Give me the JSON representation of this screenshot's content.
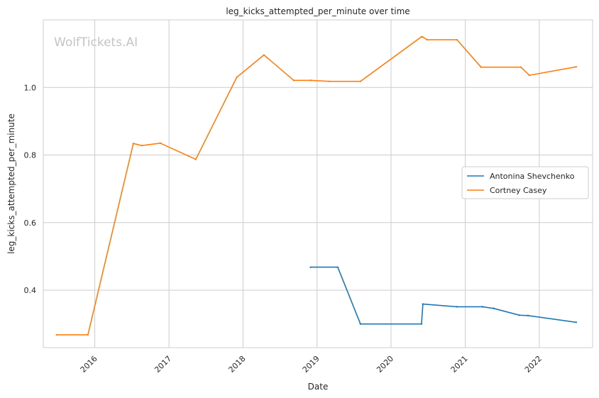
{
  "chart_data": {
    "type": "line",
    "title": "leg_kicks_attempted_per_minute over time",
    "xlabel": "Date",
    "ylabel": "leg_kicks_attempted_per_minute",
    "watermark": "WolfTickets.AI",
    "x_ticks": [
      "2016",
      "2017",
      "2018",
      "2019",
      "2020",
      "2021",
      "2022"
    ],
    "y_ticks": [
      "0.4",
      "0.6",
      "0.8",
      "1.0"
    ],
    "ylim": [
      0.23,
      1.2
    ],
    "xlim": [
      "2015-04-22",
      "2022-09-21"
    ],
    "grid": true,
    "legend_position": "center-right",
    "series": [
      {
        "name": "Antonina Shevchenko",
        "color": "#1f77b4",
        "points": [
          [
            "2018-11-30",
            0.468
          ],
          [
            "2019-04-13",
            0.468
          ],
          [
            "2019-08-03",
            0.3
          ],
          [
            "2020-05-30",
            0.3
          ],
          [
            "2020-06-06",
            0.359
          ],
          [
            "2020-11-21",
            0.351
          ],
          [
            "2021-03-27",
            0.351
          ],
          [
            "2021-05-22",
            0.346
          ],
          [
            "2021-09-25",
            0.326
          ],
          [
            "2021-11-06",
            0.325
          ],
          [
            "2022-07-02",
            0.305
          ]
        ]
      },
      {
        "name": "Cortney Casey",
        "color": "#ff7f0e",
        "points": [
          [
            "2015-06-27",
            0.268
          ],
          [
            "2015-11-28",
            0.268
          ],
          [
            "2016-07-09",
            0.834
          ],
          [
            "2016-08-20",
            0.828
          ],
          [
            "2016-11-19",
            0.835
          ],
          [
            "2017-05-13",
            0.787
          ],
          [
            "2017-12-01",
            1.03
          ],
          [
            "2018-04-14",
            1.096
          ],
          [
            "2018-09-08",
            1.021
          ],
          [
            "2018-12-01",
            1.021
          ],
          [
            "2019-03-02",
            1.018
          ],
          [
            "2019-08-03",
            1.018
          ],
          [
            "2020-05-30",
            1.15
          ],
          [
            "2020-06-06",
            1.149
          ],
          [
            "2020-06-27",
            1.141
          ],
          [
            "2020-11-21",
            1.141
          ],
          [
            "2021-03-20",
            1.06
          ],
          [
            "2021-10-02",
            1.06
          ],
          [
            "2021-11-13",
            1.036
          ],
          [
            "2022-07-02",
            1.061
          ]
        ]
      }
    ]
  }
}
